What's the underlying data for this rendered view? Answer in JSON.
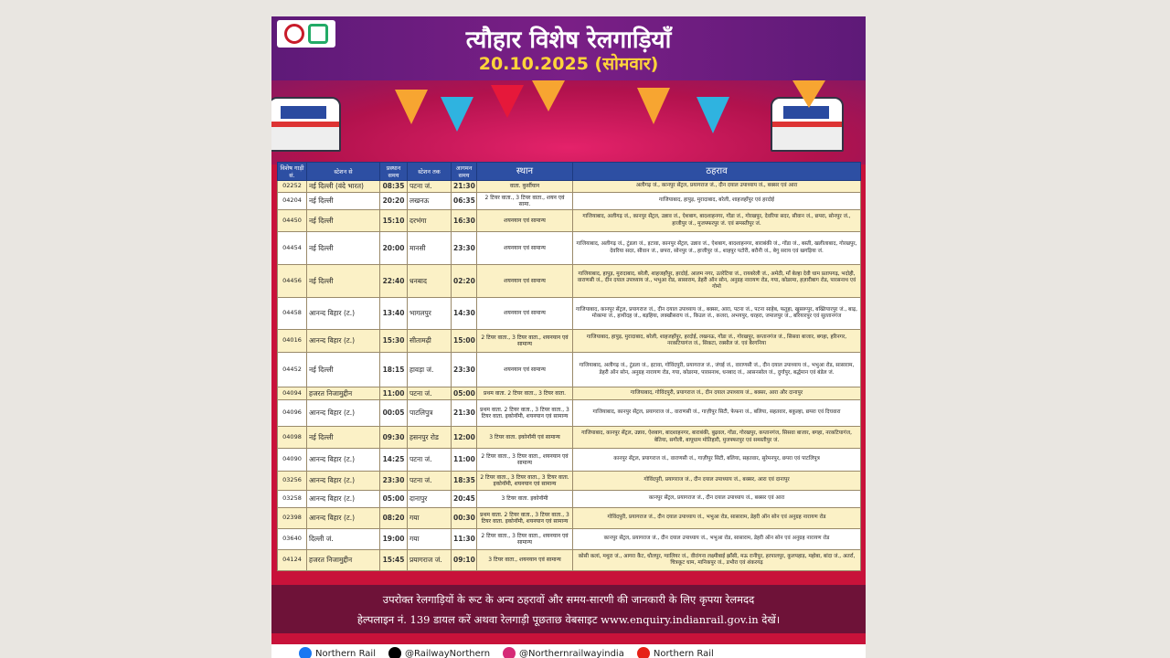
{
  "header": {
    "title": "त्यौहार विशेष रेलगाड़ियाँ",
    "date": "20.10.2025 (सोमवार)"
  },
  "columns": [
    "विशेष गाड़ी सं.",
    "स्टेशन से",
    "प्रस्थान समय",
    "स्टेशन तक",
    "आगमन समय",
    "स्थान",
    "ठहराव"
  ],
  "rows": [
    {
      "no": "02252",
      "from": "नई दिल्ली (वंदे भारत)",
      "dep": "08:35",
      "to": "पटना जं.",
      "arr": "21:30",
      "cls": "वाता. कुर्सीयान",
      "stops": "अलीगढ़ जं., कानपुर सेंट्रल, प्रयागराज जं., दीन दयाल उपाध्याय जं., बक्सर एवं आरा"
    },
    {
      "no": "04204",
      "from": "नई दिल्ली",
      "dep": "20:20",
      "to": "लखनऊ",
      "arr": "06:35",
      "cls": "2 टियर वाता., 3 टियर वाता., शयन एवं सामा.",
      "stops": "गाजियाबाद, हापुड़, मुरादाबाद, बरेली, शाहजहाँपुर एवं हरदोई"
    },
    {
      "no": "04450",
      "from": "नई दिल्ली",
      "dep": "15:10",
      "to": "दरभंगा",
      "arr": "16:30",
      "cls": "शयनयान एवं सामान्य",
      "stops": "गाजियाबाद, अलीगढ़ जं., कानपुर सेंट्रल, उन्नाव जं., ऐशबाग, बादशाहनगर, गोंडा जं., गोरखपुर, देवरिया सदर, सीवान जं., छपरा, सोनपुर जं., हाजीपुर जं., मुजफ्फरपुर जं. एवं समस्तीपुर जं."
    },
    {
      "no": "04454",
      "from": "नई दिल्ली",
      "dep": "20:00",
      "to": "मानसी",
      "arr": "23:30",
      "cls": "शयनयान एवं सामान्य",
      "stops": "गाजियाबाद, अलीगढ़ जं., टुंडला जं., इटावा, कानपुर सेंट्रल, उन्नाव जं., ऐशबाग, बादशाहनगर, बाराबंकी जं., गोंडा जं., बस्ती, खलीलाबाद, गोरखपुर, देवरिया सदर, सीवान जं., छपरा, सोनपुर जं., हाजीपुर जं., शाहपुर पटोरी, बरौनी जं., बेगु सराय एवं खगड़िया जं."
    },
    {
      "no": "04456",
      "from": "नई दिल्ली",
      "dep": "22:40",
      "to": "धनबाद",
      "arr": "02:20",
      "cls": "शयनयान एवं सामान्य",
      "stops": "गाजियाबाद, हापुड़, मुरादाबाद, बरेली, शाहजहाँपुर, हरदोई, आलम नगर, उतरेटिया जं., रायबरेली जं., अमेठी, माँ बेल्हा देवी धाम प्रतापगढ़, भदोही, वाराणसी जं., दीन दयाल उपाध्याय जं., भभुआ रोड, सासाराम, डेहरी ऑन सोन, अनुग्रह नारायण रोड, गया, कोडरमा, हज़ारीबाग रोड, पारसनाथ एवं गोमो"
    },
    {
      "no": "04458",
      "from": "आनन्द विहार (ट.)",
      "dep": "13:40",
      "to": "भागलपुर",
      "arr": "14:30",
      "cls": "शयनयान एवं सामान्य",
      "stops": "गाजियाबाद, कानपुर सेंट्रल, प्रयागराज जं., दीन दयाल उपाध्याय जं., बक्सर, आरा, पटना जं., पटना साहेब, फतुहा, खुसरूपुर, बख्तियारपुर जं., बाढ़, मोकामा जं., हाथीदह जं., बड़हिया, लक्खीसराय जं., किउल जं., कजरा, अभयपुर, धरहरा, जमालपुर जं., बरियारपुर एवं सुल्तानगंज"
    },
    {
      "no": "04016",
      "from": "आनन्द विहार (ट.)",
      "dep": "15:30",
      "to": "सीतामढ़ी",
      "arr": "15:00",
      "cls": "2 टियर वाता., 3 टियर वाता., शयनयान एवं सामान्य",
      "stops": "गाजियाबाद, हापुड़, मुरादाबाद, बरेली, शाहजहाँपुर, हरदोई, लखनऊ, गोंडा जं., गोरखपुर, कप्तानगंज जं., सिसवा बाजार, बगहा, हरिनगर, नरकटियागंज जं., सिकटा, रक्सौल जं. एवं बैरगनिया"
    },
    {
      "no": "04452",
      "from": "नई दिल्ली",
      "dep": "18:15",
      "to": "हावड़ा जं.",
      "arr": "23:30",
      "cls": "शयनयान एवं सामान्य",
      "stops": "गाजियाबाद, अलीगढ़ जं., टुंडला जं., इटावा, गोविंदपुरी, प्रयागराज जं., जंघई जं., वाराणसी जं., दीन दयाल उपाध्याय जं., भभुआ रोड, सासाराम, डेहरी ऑन सोन, अनुग्रह नारायण रोड, गया, कोडरमा, पारसनाथ, धनबाद जं., आसनसोल जं., दुर्गापुर, बर्द्धमान एवं बंडेल जं."
    },
    {
      "no": "04094",
      "from": "हजरत निजामुद्दीन",
      "dep": "11:00",
      "to": "पटना जं.",
      "arr": "05:00",
      "cls": "प्रथम वाता. 2 टियर वाता., 3 टियर वाता.",
      "stops": "गाजियाबाद, गोविंदपुरी, प्रयागराज जं., दीन दयाल उपाध्याय जं., बक्सर, आरा और दानापुर"
    },
    {
      "no": "04096",
      "from": "आनन्द विहार (ट.)",
      "dep": "00:05",
      "to": "पाटलिपुत्र",
      "arr": "21:30",
      "cls": "प्रथम वाता. 2 टियर वाता., 3 टियर वाता., 3 टियर वाता. इकोनॉमी, शयनयान एवं सामान्य",
      "stops": "गाजियाबाद, कानपुर सेंट्रल, प्रयागराज जं., वाराणसी जं., गाज़ीपुर सिटी, फेफना जं., बलिया, सहतवार, बकुल्हा, छपरा एवं दिघवारा"
    },
    {
      "no": "04098",
      "from": "नई दिल्ली",
      "dep": "09:30",
      "to": "हसनपुर रोड",
      "arr": "12:00",
      "cls": "3 टियर वाता. इकोनॉमी एवं सामान्य",
      "stops": "गाजियाबाद, कानपुर सेंट्रल, उन्नाव, ऐशबाग, बादशाहनगर, बाराबंकी, बुढ़वल, गोंडा, गोरखपुर, कप्तानगंज, सिसवा बाजार, बगहा, नरकटियागंज, बेतिया, सगौली, बापूधाम मोतिहारी, मुजफ्फरपुर एवं समस्तीपुर जं."
    },
    {
      "no": "04090",
      "from": "आनन्द विहार (ट.)",
      "dep": "14:25",
      "to": "पटना जं.",
      "arr": "11:00",
      "cls": "2 टियर वाता., 3 टियर वाता., शयनयान एवं सामान्य",
      "stops": "कानपुर सेंट्रल, प्रयागराज जं., वाराणसी जं., गाज़ीपुर सिटी, बलिया, सहतवार, सुरेमनपुर, छपरा एवं पाटलिपुत्र"
    },
    {
      "no": "03256",
      "from": "आनन्द विहार (ट.)",
      "dep": "23:30",
      "to": "पटना जं.",
      "arr": "18:35",
      "cls": "2 टियर वाता., 3 टियर वाता., 3 टियर वाता. इकोनॉमी, शयनयान एवं सामान्य",
      "stops": "गोविंदपुरी, प्रयागराज जं., दीन दयाल उपाध्याय जं., बक्सर, आरा एवं दानापुर"
    },
    {
      "no": "03258",
      "from": "आनन्द विहार (ट.)",
      "dep": "05:00",
      "to": "दानापुर",
      "arr": "20:45",
      "cls": "3 टियर वाता. इकोनॉमी",
      "stops": "कानपुर सेंट्रल, प्रयागराज जं., दीन दयाल उपाध्याय जं., बक्सर एवं आरा"
    },
    {
      "no": "02398",
      "from": "आनन्द विहार (ट.)",
      "dep": "08:20",
      "to": "गया",
      "arr": "00:30",
      "cls": "प्रथम वाता. 2 टियर वाता., 3 टियर वाता., 3 टियर वाता. इकोनॉमी, शयनयान एवं सामान्य",
      "stops": "गोविंदपुरी, प्रयागराज जं., दीन दयाल उपाध्याय जं., भभुआ रोड, सासाराम, डेहरी ऑन सोन एवं अनुग्रह नारायण रोड"
    },
    {
      "no": "03640",
      "from": "दिल्ली जं.",
      "dep": "19:00",
      "to": "गया",
      "arr": "11:30",
      "cls": "2 टियर वाता., 3 टियर वाता., शयनयान एवं सामान्य",
      "stops": "कानपुर सेंट्रल, प्रयागराज जं., दीन दयाल उपाध्याय जं., भभुआ रोड, सासाराम, डेहरी ऑन सोन एवं अनुग्रह नारायण रोड"
    },
    {
      "no": "04124",
      "from": "हजरत निजामुद्दीन",
      "dep": "15:45",
      "to": "प्रयागराज जं.",
      "arr": "09:10",
      "cls": "3 टियर वाता., शयनयान एवं सामान्य",
      "stops": "कोसी कलां, मथुरा जं., आगरा कैंट, धौलपुर, ग्वालियर जं., वीरांगना लक्ष्मीबाई झाँसी, मऊ रानीपुर, हरपालपुर, कुलपहाड़, महोबा, बांदा जं., अतर्रा, चित्रकूट धाम, मानिकपुर जं., डभौरा एवं शंकरगढ़"
    }
  ],
  "footer": {
    "line1": "उपरोक्त रेलगाड़ियों के रूट के अन्य ठहरावों और समय-सारणी की जानकारी के लिए कृपया रेलमदद",
    "line2": "हेल्पलाइन नं. 139 डायल करें अथवा रेलगाड़ी पूछताछ वेबसाइट www.enquiry.indianrail.gov.in देखें।"
  },
  "social": [
    {
      "icon": "facebook-icon",
      "label": "Northern Rail",
      "color": "#1877f2"
    },
    {
      "icon": "x-icon",
      "label": "@RailwayNorthern",
      "color": "#000000"
    },
    {
      "icon": "instagram-icon",
      "label": "@Northernrailwayindia",
      "color": "#d62976"
    },
    {
      "icon": "youtube-icon",
      "label": "Northern Rail",
      "color": "#e62117"
    }
  ]
}
